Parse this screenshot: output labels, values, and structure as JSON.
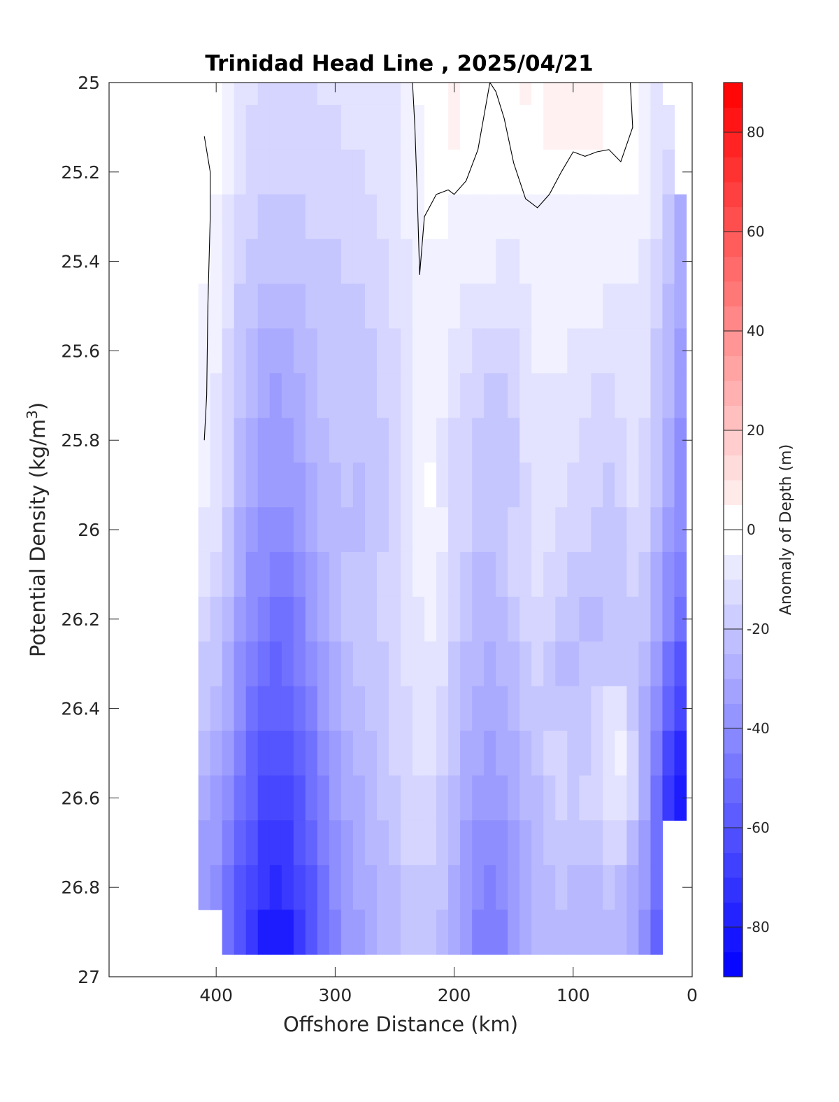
{
  "chart_data": {
    "type": "heatmap",
    "subtype": "filled-contour",
    "title": "Trinidad Head Line , 2025/04/21",
    "xlabel": "Offshore Distance (km)",
    "ylabel_main": "Potential Density (kg/m",
    "ylabel_sup": "3",
    "ylabel_close": ")",
    "colorbar_label": "Anomaly of Depth (m)",
    "x_reversed": true,
    "y_reversed": true,
    "xlim": [
      490,
      0
    ],
    "ylim": [
      25,
      27
    ],
    "x_ticks": [
      400,
      300,
      200,
      100,
      0
    ],
    "x_tick_labels": [
      "400",
      "300",
      "200",
      "100",
      "0"
    ],
    "y_ticks": [
      25,
      25.2,
      25.4,
      25.6,
      25.8,
      26,
      26.2,
      26.4,
      26.6,
      26.8,
      27
    ],
    "y_tick_labels": [
      "25",
      "25.2",
      "25.4",
      "25.6",
      "25.8",
      "26",
      "26.2",
      "26.4",
      "26.6",
      "26.8",
      "27"
    ],
    "colorbar_range": [
      -90,
      90
    ],
    "colorbar_ticks": [
      -80,
      -60,
      -40,
      -20,
      0,
      20,
      40,
      60,
      80
    ],
    "colorbar_tick_labels": [
      "-80",
      "-60",
      "-40",
      "-20",
      "0",
      "20",
      "40",
      "60",
      "80"
    ],
    "colorbar_step": 5,
    "colormap": {
      "negative": "#0000ff",
      "zero": "#ffffff",
      "positive": "#ff0000"
    },
    "x_stations": [
      410,
      400,
      390,
      380,
      370,
      360,
      350,
      340,
      330,
      320,
      310,
      300,
      290,
      280,
      270,
      260,
      250,
      240,
      230,
      220,
      210,
      200,
      190,
      180,
      170,
      160,
      150,
      140,
      130,
      120,
      110,
      100,
      90,
      80,
      70,
      60,
      50,
      40,
      30,
      20,
      10
    ],
    "y_levels": [
      25.0,
      25.1,
      25.2,
      25.3,
      25.4,
      25.5,
      25.6,
      25.7,
      25.8,
      25.9,
      26.0,
      26.1,
      26.2,
      26.3,
      26.4,
      26.5,
      26.6,
      26.7,
      26.8,
      26.9
    ],
    "z_values": [
      [
        null,
        0,
        -5,
        -10,
        -12,
        -14,
        -14,
        -14,
        -14,
        -13,
        -12,
        -12,
        -10,
        -10,
        -10,
        -9,
        -8,
        -5,
        -2,
        0,
        2,
        3,
        2,
        0,
        -1,
        0,
        2,
        3,
        2,
        3,
        4,
        4,
        3,
        3,
        2,
        1,
        -1,
        -4,
        -8,
        null,
        null
      ],
      [
        null,
        -1,
        -6,
        -11,
        -14,
        -15,
        -16,
        -16,
        -15,
        -14,
        -14,
        -13,
        -12,
        -11,
        -11,
        -10,
        -9,
        -7,
        -4,
        -1,
        2,
        3,
        2,
        -1,
        -1,
        -1,
        1,
        2,
        2,
        3,
        3,
        3,
        3,
        3,
        2,
        1,
        -1,
        -4,
        -9,
        -12,
        null
      ],
      [
        -1,
        -2,
        -7,
        -12,
        -15,
        -16,
        -17,
        -17,
        -16,
        -15,
        -15,
        -14,
        -14,
        -13,
        -11,
        -10,
        -8,
        -6,
        -3,
        -1,
        1,
        0,
        -1,
        -2,
        -2,
        -2,
        -1,
        0,
        0,
        0,
        1,
        1,
        1,
        0,
        -1,
        -1,
        -2,
        -4,
        -10,
        -14,
        null
      ],
      [
        -1,
        -3,
        -9,
        -14,
        -17,
        -18,
        -19,
        -19,
        -18,
        -17,
        -17,
        -16,
        -15,
        -15,
        -13,
        -11,
        -9,
        -7,
        -4,
        -2,
        -2,
        -3,
        -3,
        -4,
        -4,
        -5,
        -5,
        -4,
        -3,
        -3,
        -3,
        -3,
        -3,
        -4,
        -4,
        -4,
        -4,
        -6,
        -12,
        -20,
        -28
      ],
      [
        -2,
        -5,
        -10,
        -16,
        -19,
        -21,
        -22,
        -21,
        -20,
        -19,
        -18,
        -18,
        -17,
        -17,
        -15,
        -13,
        -11,
        -9,
        -6,
        -4,
        -4,
        -5,
        -6,
        -7,
        -7,
        -8,
        -8,
        -7,
        -5,
        -5,
        -4,
        -5,
        -5,
        -5,
        -5,
        -6,
        -6,
        -8,
        -14,
        -22,
        -30
      ],
      [
        -3,
        -6,
        -12,
        -18,
        -21,
        -24,
        -26,
        -25,
        -23,
        -21,
        -20,
        -19,
        -18,
        -18,
        -17,
        -15,
        -12,
        -10,
        -7,
        -5,
        -5,
        -7,
        -9,
        -10,
        -11,
        -12,
        -10,
        -8,
        -6,
        -6,
        -5,
        -6,
        -7,
        -7,
        -8,
        -8,
        -8,
        -10,
        -16,
        -24,
        -32
      ],
      [
        -4,
        -7,
        -13,
        -20,
        -23,
        -28,
        -29,
        -28,
        -26,
        -23,
        -21,
        -19,
        -18,
        -19,
        -19,
        -16,
        -13,
        -10,
        -7,
        -5,
        -6,
        -9,
        -11,
        -13,
        -15,
        -16,
        -13,
        -9,
        -7,
        -7,
        -7,
        -8,
        -9,
        -10,
        -11,
        -10,
        -9,
        -11,
        -18,
        -26,
        -34
      ],
      [
        -5,
        -8,
        -14,
        -22,
        -26,
        -32,
        -33,
        -32,
        -29,
        -25,
        -22,
        -19,
        -19,
        -21,
        -20,
        -17,
        -14,
        -10,
        -6,
        -5,
        -7,
        -11,
        -14,
        -17,
        -19,
        -20,
        -16,
        -10,
        -8,
        -9,
        -9,
        -10,
        -12,
        -13,
        -14,
        -12,
        -9,
        -12,
        -19,
        -27,
        -36
      ],
      [
        -6,
        -9,
        -15,
        -24,
        -30,
        -34,
        -35,
        -34,
        -31,
        -27,
        -24,
        -21,
        -21,
        -22,
        -21,
        -18,
        -14,
        -9,
        -4,
        -3,
        -8,
        -13,
        -16,
        -19,
        -22,
        -22,
        -18,
        -12,
        -9,
        -11,
        -11,
        -12,
        -14,
        -15,
        -16,
        -14,
        -11,
        -13,
        -20,
        -28,
        -38
      ],
      [
        -7,
        -10,
        -17,
        -26,
        -32,
        -36,
        -37,
        -36,
        -33,
        -29,
        -26,
        -23,
        -22,
        -23,
        -22,
        -19,
        -15,
        -9,
        -3,
        -2,
        -8,
        -14,
        -17,
        -20,
        -22,
        -22,
        -18,
        -13,
        -9,
        -11,
        -12,
        -13,
        -15,
        -17,
        -18,
        -16,
        -12,
        -14,
        -22,
        -30,
        -40
      ],
      [
        -9,
        -12,
        -19,
        -28,
        -34,
        -38,
        -40,
        -39,
        -36,
        -31,
        -27,
        -24,
        -23,
        -23,
        -22,
        -18,
        -14,
        -9,
        -4,
        -3,
        -7,
        -13,
        -17,
        -21,
        -22,
        -21,
        -17,
        -13,
        -9,
        -11,
        -13,
        -15,
        -17,
        -19,
        -20,
        -18,
        -15,
        -17,
        -25,
        -34,
        -42
      ],
      [
        -12,
        -16,
        -22,
        -32,
        -38,
        -42,
        -45,
        -45,
        -40,
        -34,
        -28,
        -24,
        -22,
        -21,
        -20,
        -17,
        -13,
        -9,
        -6,
        -5,
        -9,
        -14,
        -19,
        -23,
        -23,
        -21,
        -17,
        -14,
        -11,
        -13,
        -16,
        -18,
        -20,
        -21,
        -22,
        -20,
        -17,
        -19,
        -28,
        -38,
        -46
      ],
      [
        -15,
        -19,
        -25,
        -35,
        -42,
        -47,
        -50,
        -49,
        -44,
        -37,
        -30,
        -25,
        -22,
        -20,
        -19,
        -17,
        -14,
        -11,
        -8,
        -7,
        -11,
        -16,
        -21,
        -25,
        -25,
        -23,
        -19,
        -16,
        -14,
        -16,
        -19,
        -21,
        -23,
        -23,
        -22,
        -19,
        -18,
        -22,
        -31,
        -42,
        -50
      ],
      [
        -18,
        -22,
        -28,
        -38,
        -45,
        -50,
        -53,
        -52,
        -47,
        -40,
        -33,
        -28,
        -24,
        -20,
        -20,
        -18,
        -15,
        -12,
        -9,
        -8,
        -12,
        -18,
        -23,
        -27,
        -28,
        -26,
        -23,
        -19,
        -17,
        -20,
        -23,
        -24,
        -22,
        -20,
        -18,
        -18,
        -21,
        -26,
        -35,
        -48,
        -58
      ],
      [
        -22,
        -26,
        -32,
        -42,
        -49,
        -55,
        -57,
        -56,
        -51,
        -44,
        -37,
        -31,
        -27,
        -24,
        -22,
        -20,
        -17,
        -13,
        -11,
        -10,
        -14,
        -20,
        -25,
        -29,
        -31,
        -29,
        -26,
        -22,
        -19,
        -20,
        -22,
        -21,
        -18,
        -15,
        -12,
        -11,
        -18,
        -28,
        -40,
        -55,
        -65
      ],
      [
        -26,
        -30,
        -36,
        -46,
        -53,
        -60,
        -62,
        -60,
        -55,
        -48,
        -40,
        -33,
        -29,
        -26,
        -24,
        -21,
        -17,
        -14,
        -12,
        -12,
        -16,
        -22,
        -28,
        -32,
        -34,
        -32,
        -29,
        -25,
        -21,
        -17,
        -15,
        -19,
        -20,
        -14,
        -8,
        -6,
        -15,
        -30,
        -45,
        -65,
        -75
      ],
      [
        -30,
        -34,
        -40,
        -50,
        -57,
        -64,
        -66,
        -64,
        -59,
        -52,
        -43,
        -36,
        -31,
        -28,
        -25,
        -22,
        -18,
        -15,
        -14,
        -14,
        -18,
        -24,
        -30,
        -35,
        -37,
        -35,
        -31,
        -27,
        -23,
        -19,
        -17,
        -18,
        -17,
        -13,
        -8,
        -8,
        -16,
        -32,
        -48,
        -68,
        -80
      ],
      [
        -33,
        -37,
        -44,
        -54,
        -61,
        -68,
        -71,
        -68,
        -62,
        -55,
        -46,
        -39,
        -33,
        -30,
        -27,
        -24,
        -20,
        -17,
        -16,
        -16,
        -20,
        -27,
        -33,
        -38,
        -40,
        -38,
        -33,
        -28,
        -24,
        -22,
        -19,
        -21,
        -21,
        -18,
        -15,
        -17,
        -24,
        -34,
        -50,
        null,
        null
      ],
      [
        -36,
        -40,
        -48,
        -58,
        -67,
        -72,
        -75,
        -72,
        -66,
        -58,
        -49,
        -41,
        -35,
        -31,
        -28,
        -26,
        -25,
        -22,
        -19,
        -18,
        -22,
        -29,
        -35,
        -41,
        -43,
        -40,
        -35,
        -30,
        -26,
        -24,
        -22,
        -23,
        -24,
        -23,
        -22,
        -24,
        -28,
        -36,
        -52,
        null,
        null
      ],
      [
        null,
        null,
        -52,
        -62,
        -70,
        -80,
        -82,
        -80,
        -70,
        -61,
        -51,
        -43,
        -37,
        -33,
        -29,
        -27,
        -25,
        -22,
        -20,
        -19,
        -23,
        -31,
        -37,
        -43,
        -46,
        -43,
        -37,
        -31,
        -27,
        -25,
        -23,
        -24,
        -25,
        -25,
        -24,
        -26,
        -30,
        -38,
        -54,
        null,
        null
      ]
    ],
    "contour_lines": [
      {
        "level": 0,
        "points": [
          [
            410,
            25.12
          ],
          [
            405,
            25.2
          ],
          [
            405,
            25.3
          ],
          [
            407,
            25.5
          ],
          [
            408,
            25.7
          ],
          [
            410,
            25.8
          ]
        ]
      },
      {
        "level": 0,
        "points": [
          [
            235,
            25.0
          ],
          [
            233,
            25.1
          ],
          [
            231,
            25.25
          ],
          [
            229,
            25.43
          ],
          [
            225,
            25.3
          ],
          [
            215,
            25.25
          ],
          [
            205,
            25.24
          ],
          [
            200,
            25.25
          ],
          [
            190,
            25.22
          ],
          [
            180,
            25.15
          ],
          [
            170,
            25.0
          ],
          [
            165,
            25.02
          ],
          [
            158,
            25.08
          ],
          [
            150,
            25.18
          ],
          [
            140,
            25.26
          ],
          [
            130,
            25.28
          ],
          [
            120,
            25.25
          ],
          [
            110,
            25.2
          ],
          [
            100,
            25.155
          ],
          [
            90,
            25.165
          ],
          [
            80,
            25.155
          ],
          [
            70,
            25.15
          ],
          [
            60,
            25.177
          ],
          [
            50,
            25.1
          ],
          [
            52,
            25.0
          ]
        ]
      }
    ]
  }
}
